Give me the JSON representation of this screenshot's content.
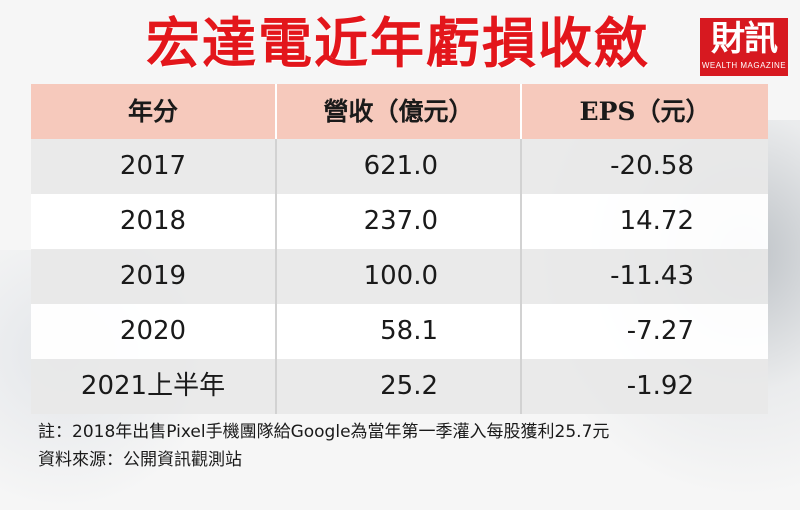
{
  "title": "宏達電近年虧損收斂",
  "logo": {
    "main": "財訊",
    "sub": "WEALTH MAGAZINE"
  },
  "table": {
    "headers": [
      "年分",
      "營收（億元）",
      "EPS（元）"
    ],
    "rows": [
      [
        "2017",
        "621.0",
        "-20.58"
      ],
      [
        "2018",
        "237.0",
        "14.72"
      ],
      [
        "2019",
        "100.0",
        "-11.43"
      ],
      [
        "2020",
        "58.1",
        "-7.27"
      ],
      [
        "2021上半年",
        "25.2",
        "-1.92"
      ]
    ]
  },
  "notes": {
    "note": "註：2018年出售Pixel手機團隊給Google為當年第一季灌入每股獲利25.7元",
    "source": "資料來源：公開資訊觀測站"
  }
}
